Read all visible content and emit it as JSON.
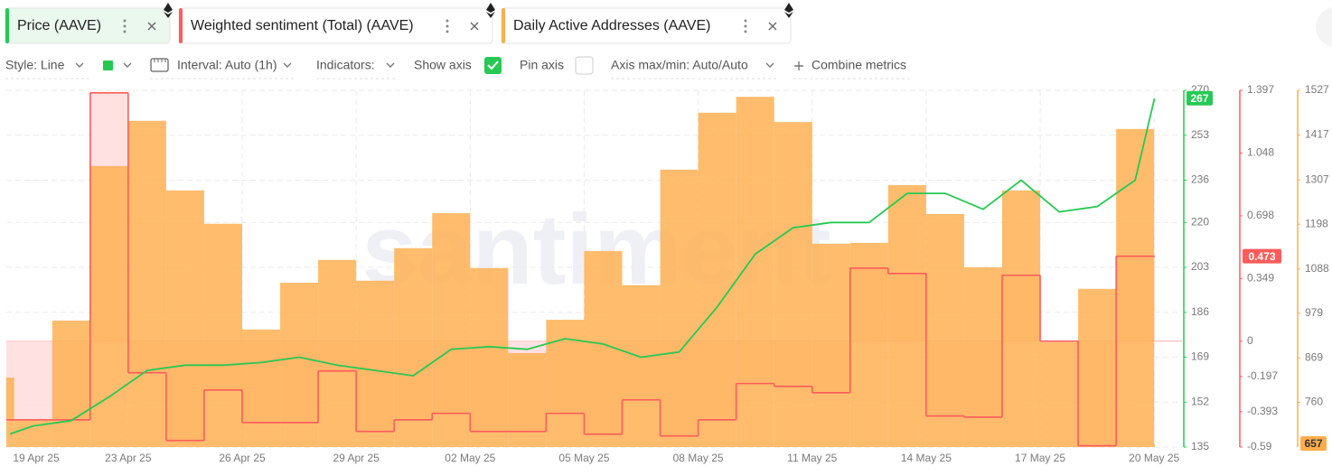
{
  "ui": {
    "toolbar": {
      "style": "Style: Line",
      "interval": "Interval: Auto (1h)",
      "indicators": "Indicators:",
      "show_axis": "Show axis",
      "pin_axis": "Pin axis",
      "axis_minmax": "Axis max/min: Auto/Auto",
      "combine": "Combine metrics"
    }
  },
  "chart_data": {
    "type": "combo",
    "watermark": "santiment",
    "grid": true,
    "categories": [
      "19 Apr 25",
      null,
      null,
      null,
      "23 Apr 25",
      null,
      null,
      "26 Apr 25",
      null,
      null,
      "29 Apr 25",
      null,
      null,
      "02 May 25",
      null,
      null,
      "05 May 25",
      null,
      null,
      "08 May 25",
      null,
      null,
      "11 May 25",
      null,
      null,
      "14 May 25",
      null,
      null,
      "17 May 25",
      null,
      null,
      "20 May 25"
    ],
    "ylim": [
      135,
      270
    ],
    "yticks": [
      135,
      152,
      169,
      186,
      203,
      220,
      236,
      253,
      270
    ],
    "y2lim": [
      -0.59,
      1.397
    ],
    "y2ticks": [
      -0.59,
      -0.393,
      -0.197,
      0,
      0.349,
      0.698,
      1.048,
      1.397
    ],
    "y3lim": [
      650,
      1527
    ],
    "y3ticks": [
      760,
      869,
      979,
      1088,
      1198,
      1307,
      1417,
      1527
    ],
    "series": [
      {
        "name": "Daily Active Addresses (AAVE)",
        "type": "bar",
        "axis": "y3",
        "color": "#ffad4d",
        "values": [
          821,
          717,
          961,
          1341,
          1452,
          1281,
          1199,
          939,
          1054,
          1110,
          1059,
          1139,
          1225,
          1090,
          881,
          963,
          1132,
          1048,
          1332,
          1472,
          1511,
          1449,
          1150,
          1152,
          1294,
          1223,
          1092,
          1281,
          908,
          1039,
          1432,
          657
        ]
      },
      {
        "name": "Weighted sentiment (Total) (AAVE)",
        "type": "step",
        "axis": "y2",
        "color": "#ff5c5c",
        "values": [
          -0.438,
          -0.438,
          -0.438,
          1.383,
          -0.176,
          -0.553,
          -0.272,
          -0.453,
          -0.453,
          -0.166,
          -0.503,
          -0.438,
          -0.402,
          -0.503,
          -0.503,
          -0.402,
          -0.518,
          -0.327,
          -0.528,
          -0.438,
          -0.236,
          -0.252,
          -0.287,
          0.407,
          0.377,
          -0.417,
          -0.423,
          0.367,
          0,
          -0.583,
          0.473,
          0.473
        ]
      },
      {
        "name": "Price (AAVE)",
        "type": "line",
        "axis": "y",
        "color": "#26c953",
        "values": [
          140,
          143,
          145,
          154,
          164,
          166,
          166,
          167,
          169,
          166,
          164,
          162,
          172,
          173,
          172,
          176,
          174,
          169,
          171,
          188,
          208,
          218,
          220,
          220,
          231,
          231,
          225,
          236,
          224,
          226,
          236,
          267
        ]
      }
    ]
  }
}
